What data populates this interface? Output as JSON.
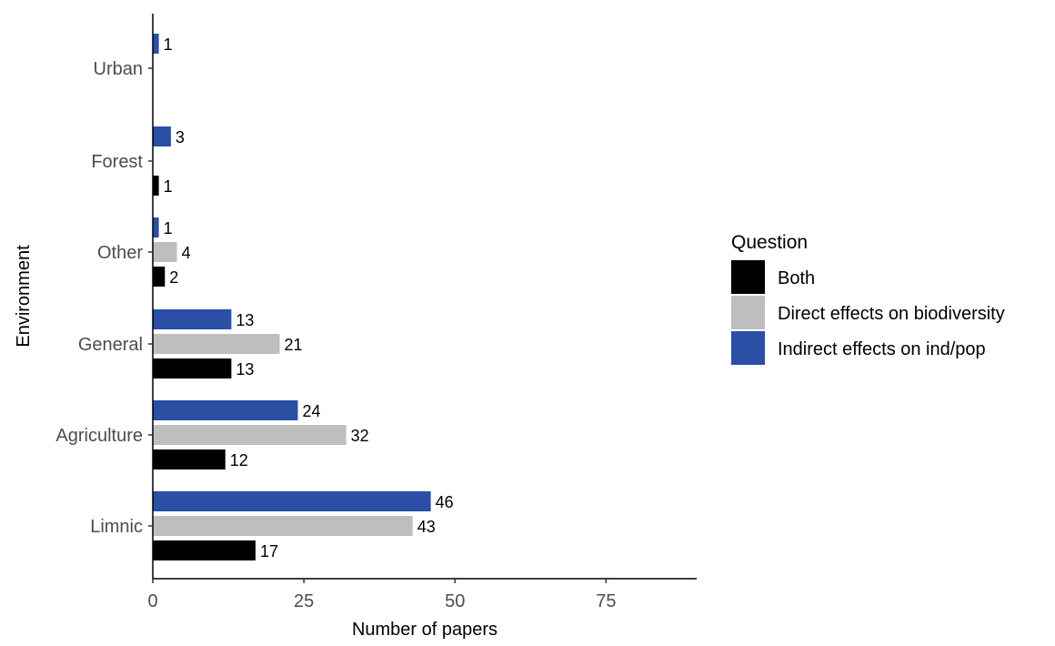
{
  "chart_data": {
    "type": "bar",
    "orientation": "horizontal",
    "categories": [
      "Urban",
      "Forest",
      "Other",
      "General",
      "Agriculture",
      "Limnic"
    ],
    "series": [
      {
        "name": "Indirect effects on ind/pop",
        "color": "#2a4fa5",
        "values": [
          1,
          3,
          1,
          13,
          24,
          46
        ]
      },
      {
        "name": "Direct effects on biodiversity",
        "color": "#bebebe",
        "values": [
          null,
          null,
          4,
          21,
          32,
          43
        ]
      },
      {
        "name": "Both",
        "color": "#000000",
        "values": [
          null,
          1,
          2,
          13,
          12,
          17
        ]
      }
    ],
    "xlabel": "Number of papers",
    "ylabel": "Environment",
    "xlim": [
      0,
      90
    ],
    "xticks": [
      0,
      25,
      50,
      75
    ],
    "grid": false,
    "legend": {
      "title": "Question",
      "position": "right",
      "order": [
        "Both",
        "Direct effects on biodiversity",
        "Indirect effects on ind/pop"
      ]
    }
  }
}
